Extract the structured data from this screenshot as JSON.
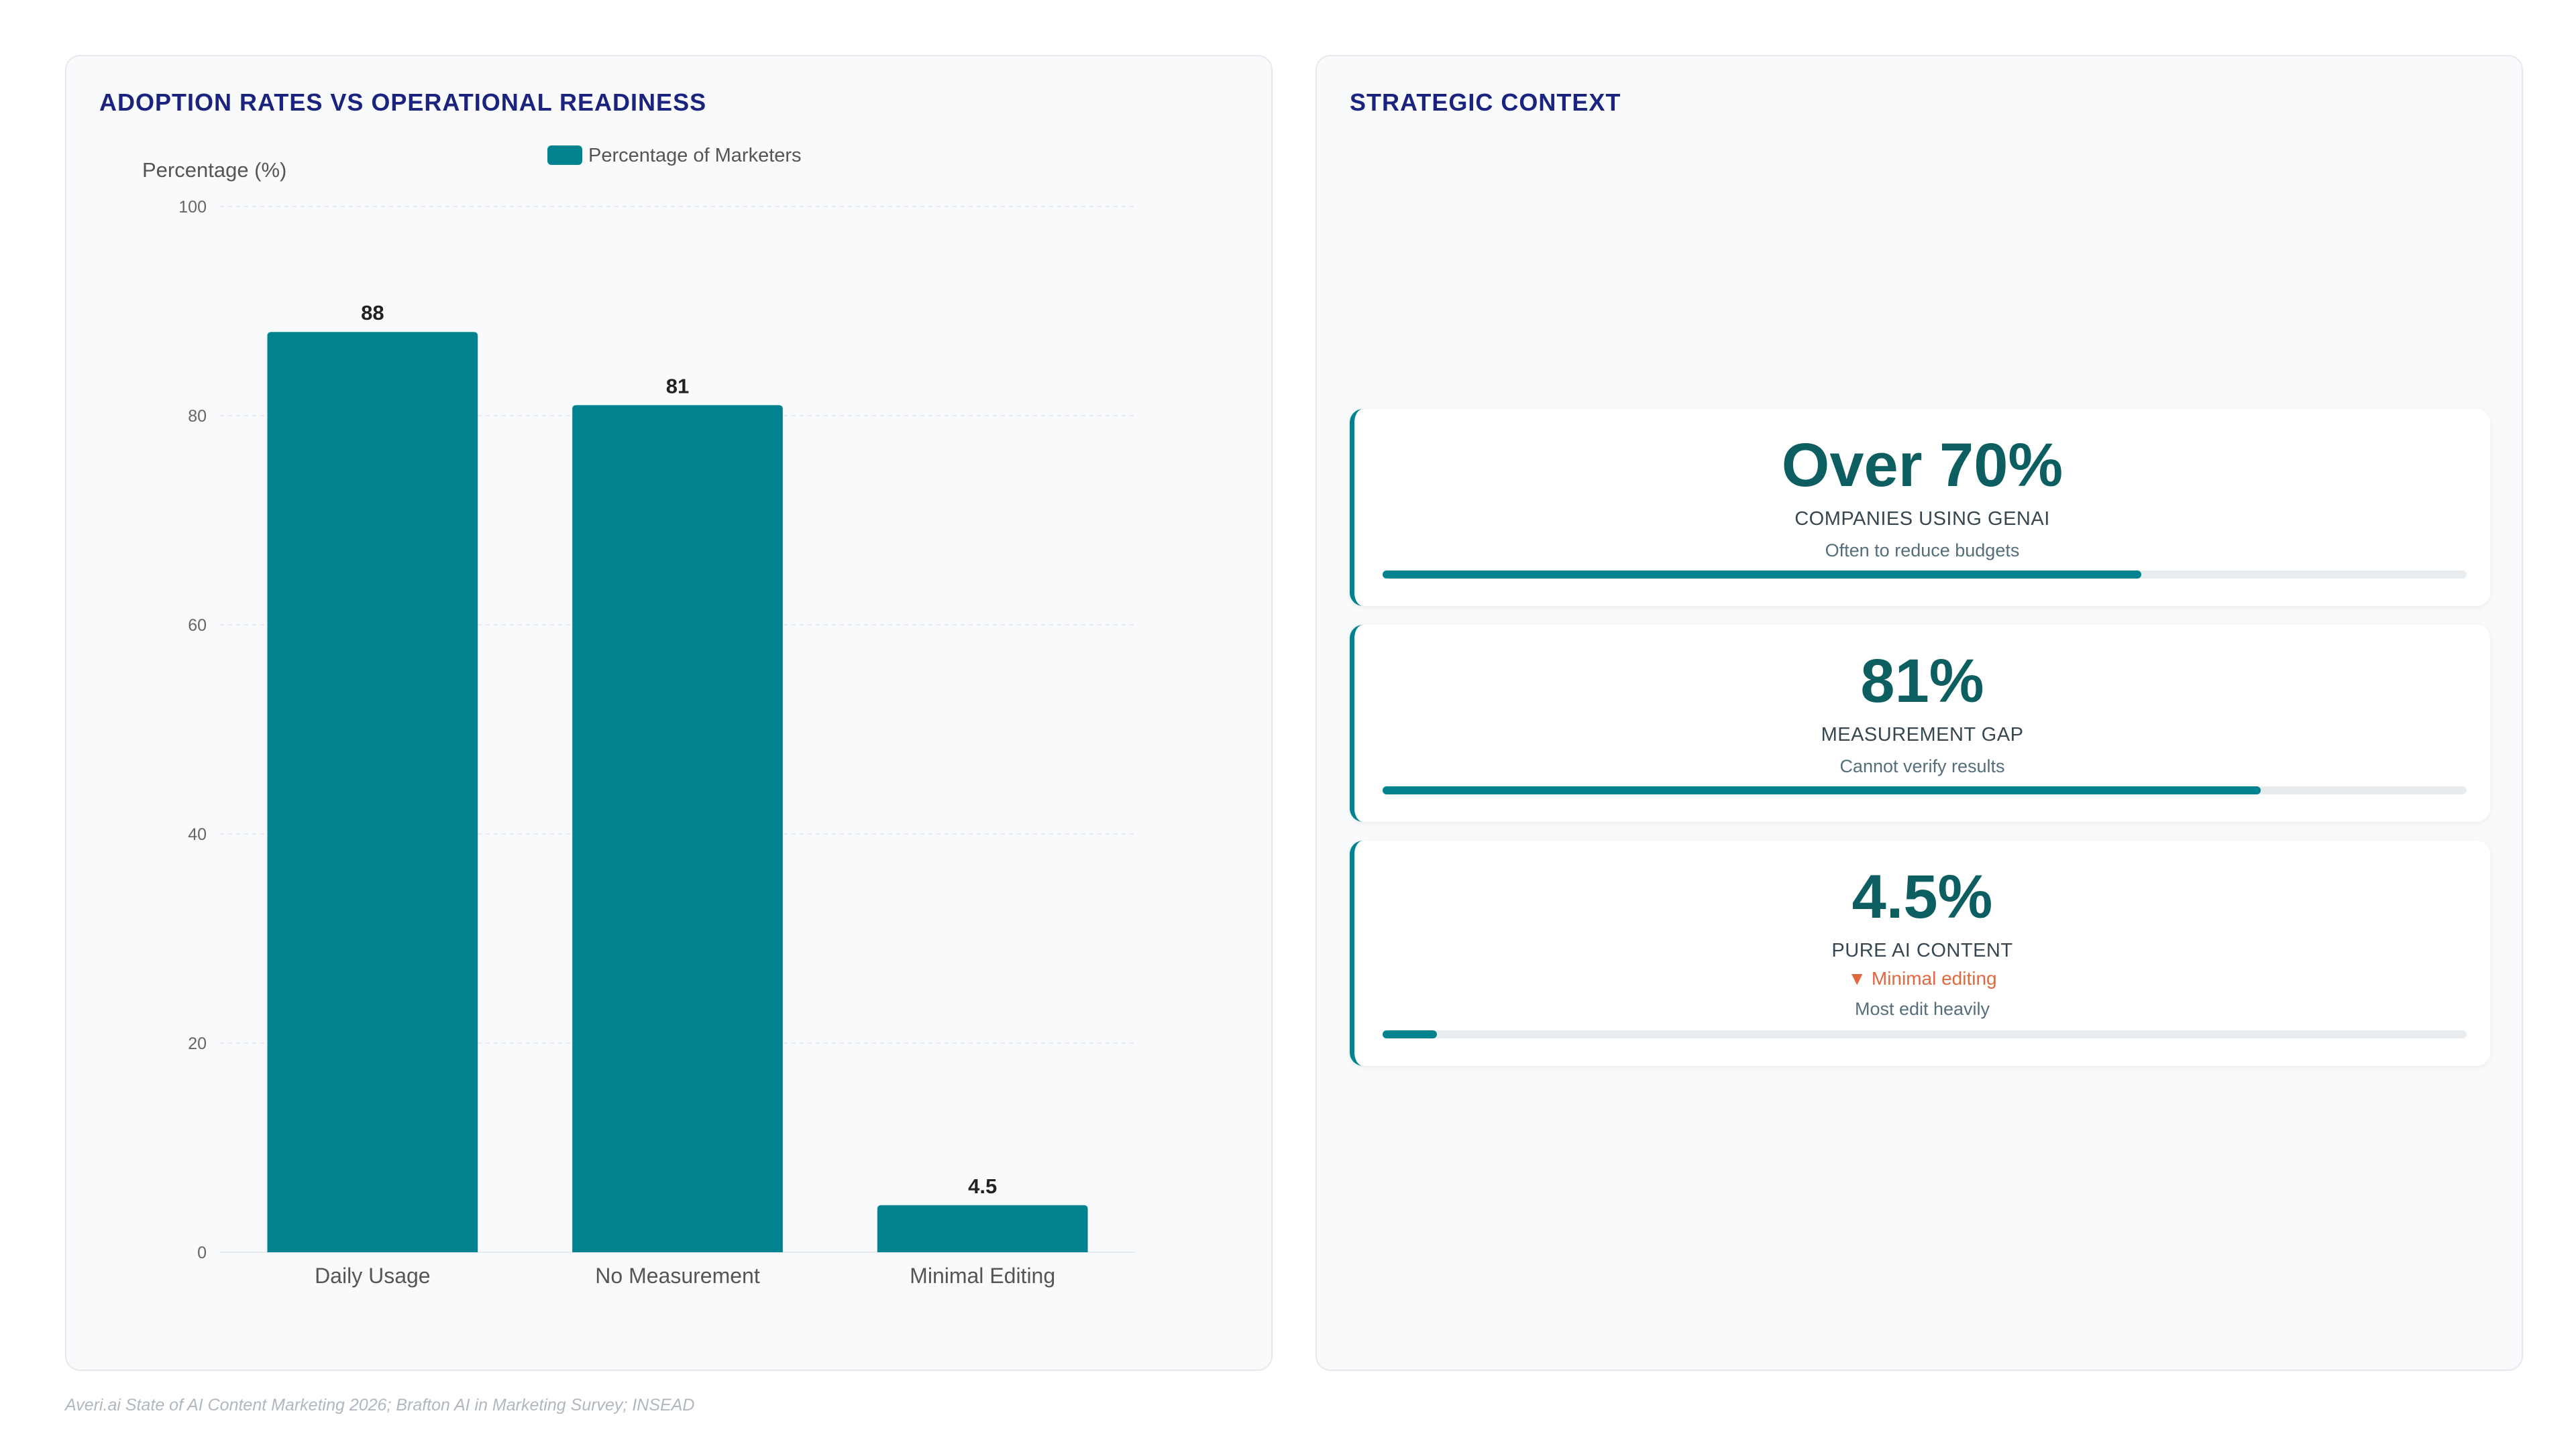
{
  "left_panel": {
    "title": "ADOPTION RATES VS OPERATIONAL READINESS"
  },
  "right_panel": {
    "title": "STRATEGIC CONTEXT"
  },
  "chart_data": {
    "type": "bar",
    "categories": [
      "Daily Usage",
      "No Measurement",
      "Minimal Editing"
    ],
    "series": [
      {
        "name": "Percentage of Marketers",
        "values": [
          88,
          81,
          4.5
        ]
      }
    ],
    "data_labels": [
      "88",
      "81",
      "4.5"
    ],
    "ylabel": "Percentage (%)",
    "xlabel": "",
    "ylim": [
      0,
      100
    ],
    "yticks": [
      0,
      20,
      40,
      60,
      80,
      100
    ],
    "grid": true,
    "legend_position": "top",
    "bar_color": "#00838f"
  },
  "cards": [
    {
      "value": "Over 70%",
      "label": "COMPANIES USING GENAI",
      "sub": "Often to reduce budgets",
      "progress": 0.7
    },
    {
      "value": "81%",
      "label": "MEASUREMENT GAP",
      "sub": "Cannot verify results",
      "progress": 0.81
    },
    {
      "value": "4.5%",
      "label": "PURE AI CONTENT",
      "trend": "▼ Minimal editing",
      "sub": "Most edit heavily",
      "progress": 0.05
    }
  ],
  "colors": {
    "accent": "#00838f",
    "title": "#1a237e",
    "value": "#0d5e60",
    "trend_down": "#e0683f"
  },
  "footer": {
    "source": "Averi.ai State of AI Content Marketing 2026; Brafton AI in Marketing Survey; INSEAD"
  }
}
